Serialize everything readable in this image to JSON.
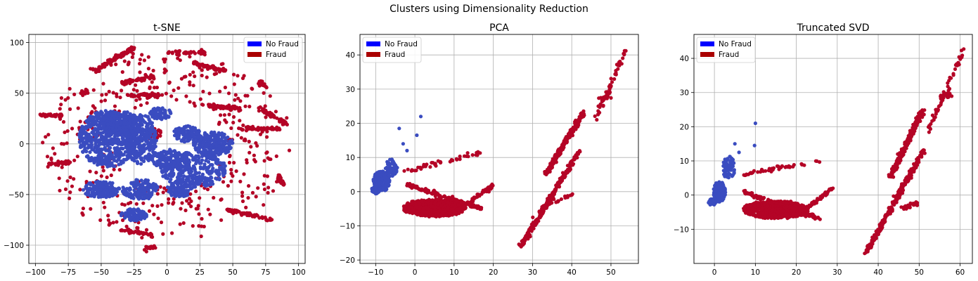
{
  "figure": {
    "suptitle": "Clusters using Dimensionality Reduction"
  },
  "colors": {
    "no_fraud": "#3a4cc0",
    "fraud": "#b40426",
    "legend_no_fraud": "#0000ff",
    "legend_fraud": "#aa0000",
    "grid": "#b0b0b0"
  },
  "legend": {
    "labels": [
      "No Fraud",
      "Fraud"
    ],
    "placement": "upper-left (t-SNE: upper-right)"
  },
  "chart_data": [
    {
      "type": "scatter",
      "title": "t-SNE",
      "xlim": [
        -105,
        105
      ],
      "ylim": [
        -118,
        108
      ],
      "xticks": [
        -100,
        -75,
        -50,
        -25,
        0,
        25,
        50,
        75,
        100
      ],
      "yticks": [
        -100,
        -50,
        0,
        50,
        100
      ],
      "grid": true,
      "legend_position": "top-right",
      "series": [
        {
          "name": "No Fraud",
          "color": "#3a4cc0",
          "clusters": [
            {
              "c": [
                -45,
                5
              ],
              "r": [
                22,
                28
              ],
              "n": 650
            },
            {
              "c": [
                -20,
                5
              ],
              "r": [
                12,
                25
              ],
              "n": 280
            },
            {
              "c": [
                -35,
                20
              ],
              "r": [
                15,
                12
              ],
              "n": 200
            },
            {
              "c": [
                20,
                -25
              ],
              "r": [
                25,
                18
              ],
              "n": 350
            },
            {
              "c": [
                35,
                0
              ],
              "r": [
                15,
                12
              ],
              "n": 200
            },
            {
              "c": [
                15,
                10
              ],
              "r": [
                10,
                8
              ],
              "n": 120
            },
            {
              "c": [
                -50,
                -45
              ],
              "r": [
                14,
                8
              ],
              "n": 160
            },
            {
              "c": [
                -25,
                -70
              ],
              "r": [
                10,
                6
              ],
              "n": 110
            },
            {
              "c": [
                -20,
                -45
              ],
              "r": [
                14,
                10
              ],
              "n": 140
            },
            {
              "c": [
                0,
                -15
              ],
              "r": [
                12,
                10
              ],
              "n": 120
            },
            {
              "c": [
                -5,
                30
              ],
              "r": [
                8,
                6
              ],
              "n": 60
            },
            {
              "c": [
                10,
                -45
              ],
              "r": [
                10,
                8
              ],
              "n": 90
            }
          ]
        },
        {
          "name": "Fraud",
          "color": "#b40426",
          "arcs": [
            {
              "from": [
                -55,
                72
              ],
              "to": [
                -25,
                95
              ],
              "n": 120
            },
            {
              "from": [
                -35,
                60
              ],
              "to": [
                -10,
                66
              ],
              "n": 60
            },
            {
              "from": [
                -30,
                48
              ],
              "to": [
                -5,
                48
              ],
              "n": 50
            },
            {
              "from": [
                -95,
                28
              ],
              "to": [
                -80,
                28
              ],
              "n": 40
            },
            {
              "from": [
                -90,
                -20
              ],
              "to": [
                -75,
                -18
              ],
              "n": 40
            },
            {
              "from": [
                20,
                80
              ],
              "to": [
                45,
                72
              ],
              "n": 60
            },
            {
              "from": [
                30,
                38
              ],
              "to": [
                55,
                35
              ],
              "n": 60
            },
            {
              "from": [
                70,
                35
              ],
              "to": [
                90,
                20
              ],
              "n": 60
            },
            {
              "from": [
                55,
                15
              ],
              "to": [
                85,
                15
              ],
              "n": 60
            },
            {
              "from": [
                45,
                -65
              ],
              "to": [
                80,
                -75
              ],
              "n": 60
            },
            {
              "from": [
                -35,
                -85
              ],
              "to": [
                -10,
                -90
              ],
              "n": 40
            },
            {
              "from": [
                75,
                55
              ],
              "to": [
                70,
                62
              ],
              "n": 25
            },
            {
              "from": [
                -15,
                -103
              ],
              "to": [
                -8,
                -102
              ],
              "n": 20
            },
            {
              "from": [
                85,
                -30
              ],
              "to": [
                88,
                -40
              ],
              "n": 25
            },
            {
              "from": [
                -65,
                50
              ],
              "to": [
                -60,
                52
              ],
              "n": 15
            },
            {
              "from": [
                0,
                90
              ],
              "to": [
                30,
                90
              ],
              "n": 40
            }
          ],
          "clusters": [
            {
              "c": [
                0,
                0
              ],
              "r": [
                95,
                95
              ],
              "n": 420,
              "ring": true
            },
            {
              "c": [
                -10,
                10
              ],
              "r": [
                6,
                6
              ],
              "n": 25
            }
          ]
        }
      ]
    },
    {
      "type": "scatter",
      "title": "PCA",
      "xlim": [
        -14,
        57
      ],
      "ylim": [
        -21,
        46
      ],
      "xticks": [
        -10,
        0,
        10,
        20,
        30,
        40,
        50
      ],
      "yticks": [
        -20,
        -10,
        0,
        10,
        20,
        30,
        40
      ],
      "grid": true,
      "legend_position": "top-left",
      "series": [
        {
          "name": "No Fraud",
          "color": "#3a4cc0",
          "clusters": [
            {
              "c": [
                -8.5,
                3
              ],
              "r": [
                2.2,
                3
              ],
              "n": 220
            },
            {
              "c": [
                -10,
                0.5
              ],
              "r": [
                1,
                1.2
              ],
              "n": 60
            },
            {
              "c": [
                -6,
                7
              ],
              "r": [
                1.5,
                2.5
              ],
              "n": 60
            }
          ],
          "points": [
            [
              1.5,
              22
            ],
            [
              -4,
              18.5
            ],
            [
              0.5,
              16.5
            ],
            [
              -3,
              14
            ],
            [
              -2,
              12
            ]
          ]
        },
        {
          "name": "Fraud",
          "color": "#b40426",
          "blob": {
            "c": [
              5,
              -4.5
            ],
            "r": [
              8,
              2.5
            ],
            "n": 650
          },
          "arcs": [
            {
              "from": [
                -2,
                2
              ],
              "to": [
                17,
                -5
              ],
              "n": 150
            },
            {
              "from": [
                -2,
                6
              ],
              "to": [
                17,
                11.5
              ],
              "n": 45
            },
            {
              "from": [
                10,
                -6
              ],
              "to": [
                20,
                2
              ],
              "n": 60
            },
            {
              "from": [
                33,
                4.5
              ],
              "to": [
                43,
                23
              ],
              "n": 220
            },
            {
              "from": [
                27,
                -16
              ],
              "to": [
                42,
                12
              ],
              "n": 260
            },
            {
              "from": [
                46,
                21
              ],
              "to": [
                54,
                42
              ],
              "n": 55
            },
            {
              "from": [
                47,
                27.5
              ],
              "to": [
                50,
                27.5
              ],
              "n": 12
            },
            {
              "from": [
                33,
                -4
              ],
              "to": [
                40,
                -1
              ],
              "n": 30
            }
          ]
        }
      ]
    },
    {
      "type": "scatter",
      "title": "Truncated SVD",
      "xlim": [
        -5,
        63
      ],
      "ylim": [
        -20,
        47
      ],
      "xticks": [
        0,
        10,
        20,
        30,
        40,
        50,
        60
      ],
      "yticks": [
        -10,
        0,
        10,
        20,
        30,
        40
      ],
      "grid": true,
      "legend_position": "top-left",
      "series": [
        {
          "name": "No Fraud",
          "color": "#3a4cc0",
          "clusters": [
            {
              "c": [
                1.2,
                1
              ],
              "r": [
                1.5,
                3
              ],
              "n": 220
            },
            {
              "c": [
                -0.5,
                -2
              ],
              "r": [
                1,
                1
              ],
              "n": 60
            },
            {
              "c": [
                3.5,
                8
              ],
              "r": [
                1.5,
                3.5
              ],
              "n": 60
            }
          ],
          "points": [
            [
              10,
              21
            ],
            [
              9.8,
              14.5
            ],
            [
              6,
              12.5
            ],
            [
              5,
              15
            ]
          ]
        },
        {
          "name": "Fraud",
          "color": "#b40426",
          "blob": {
            "c": [
              15,
              -4
            ],
            "r": [
              8,
              2.5
            ],
            "n": 650
          },
          "arcs": [
            {
              "from": [
                7,
                1
              ],
              "to": [
                26,
                -7
              ],
              "n": 150
            },
            {
              "from": [
                7,
                6
              ],
              "to": [
                26,
                10
              ],
              "n": 45
            },
            {
              "from": [
                20,
                -6
              ],
              "to": [
                29,
                2
              ],
              "n": 60
            },
            {
              "from": [
                43,
                5.5
              ],
              "to": [
                51,
                25
              ],
              "n": 220
            },
            {
              "from": [
                37,
                -17
              ],
              "to": [
                51,
                13
              ],
              "n": 260
            },
            {
              "from": [
                52,
                18
              ],
              "to": [
                61,
                43
              ],
              "n": 55
            },
            {
              "from": [
                55,
                29
              ],
              "to": [
                58,
                29
              ],
              "n": 12
            },
            {
              "from": [
                46,
                -4
              ],
              "to": [
                50,
                -2
              ],
              "n": 30
            }
          ]
        }
      ]
    }
  ]
}
